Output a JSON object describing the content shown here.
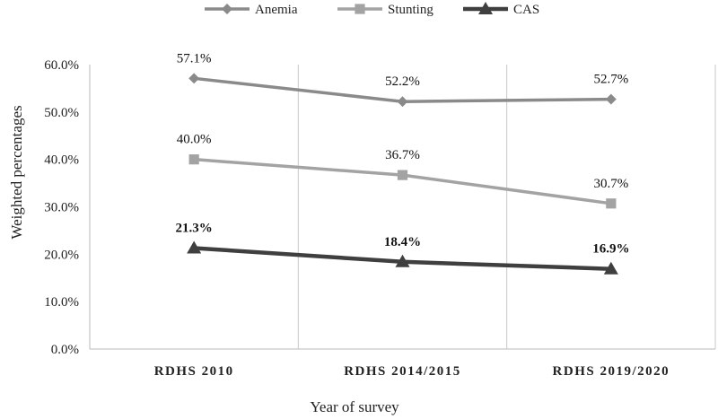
{
  "chart_data": {
    "type": "line",
    "title": "",
    "xlabel": "Year of survey",
    "ylabel": "Weighted percentages",
    "ylim": [
      0,
      60
    ],
    "yticks": [
      "0.0%",
      "10.0%",
      "20.0%",
      "30.0%",
      "40.0%",
      "50.0%",
      "60.0%"
    ],
    "categories": [
      "RDHS 2010",
      "RDHS 2014/2015",
      "RDHS 2019/2020"
    ],
    "legend_position": "top",
    "series": [
      {
        "name": "Anemia",
        "values": [
          57.1,
          52.2,
          52.7
        ],
        "labels": [
          "57.1%",
          "52.2%",
          "52.7%"
        ],
        "color": "#8a8a8a",
        "marker": "diamond",
        "bold_labels": false
      },
      {
        "name": "Stunting",
        "values": [
          40.0,
          36.7,
          30.7
        ],
        "labels": [
          "40.0%",
          "36.7%",
          "30.7%"
        ],
        "color": "#a3a3a3",
        "marker": "square",
        "bold_labels": false
      },
      {
        "name": "CAS",
        "values": [
          21.3,
          18.4,
          16.9
        ],
        "labels": [
          "21.3%",
          "18.4%",
          "16.9%"
        ],
        "color": "#3f3f3f",
        "marker": "triangle",
        "bold_labels": true
      }
    ]
  }
}
